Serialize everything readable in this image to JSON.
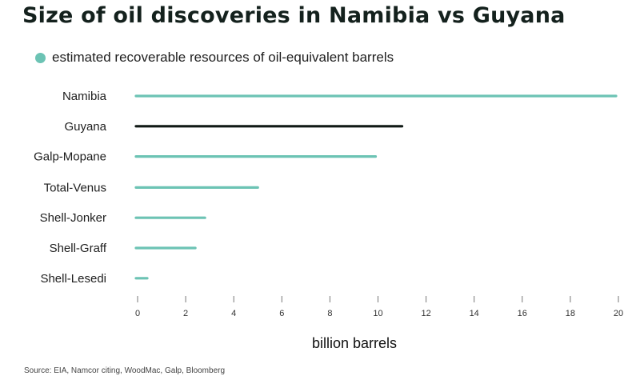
{
  "title": "Size of oil discoveries in Namibia vs Guyana",
  "source": "Source: EIA, Namcor citing, WoodMac, Galp, Bloomberg",
  "colors": {
    "series": "#6cc3b4",
    "highlight": "#111a16"
  },
  "chart_data": {
    "type": "bar",
    "orientation": "horizontal",
    "categories": [
      "Namibia",
      "Guyana",
      "Galp-Mopane",
      "Total-Venus",
      "Shell-Jonker",
      "Shell-Graff",
      "Shell-Lesedi"
    ],
    "series": [
      {
        "name": "estimated recoverable resources of oil-equivalent barrels",
        "values": [
          19.9,
          11.0,
          9.9,
          5.0,
          2.8,
          2.4,
          0.4
        ]
      }
    ],
    "highlight_category": "Guyana",
    "xlabel": "billion barrels",
    "ylabel": "",
    "xlim": [
      0,
      20
    ],
    "xticks": [
      0,
      2,
      4,
      6,
      8,
      10,
      12,
      14,
      16,
      18,
      20
    ],
    "grid": false,
    "legend": "top-left"
  }
}
